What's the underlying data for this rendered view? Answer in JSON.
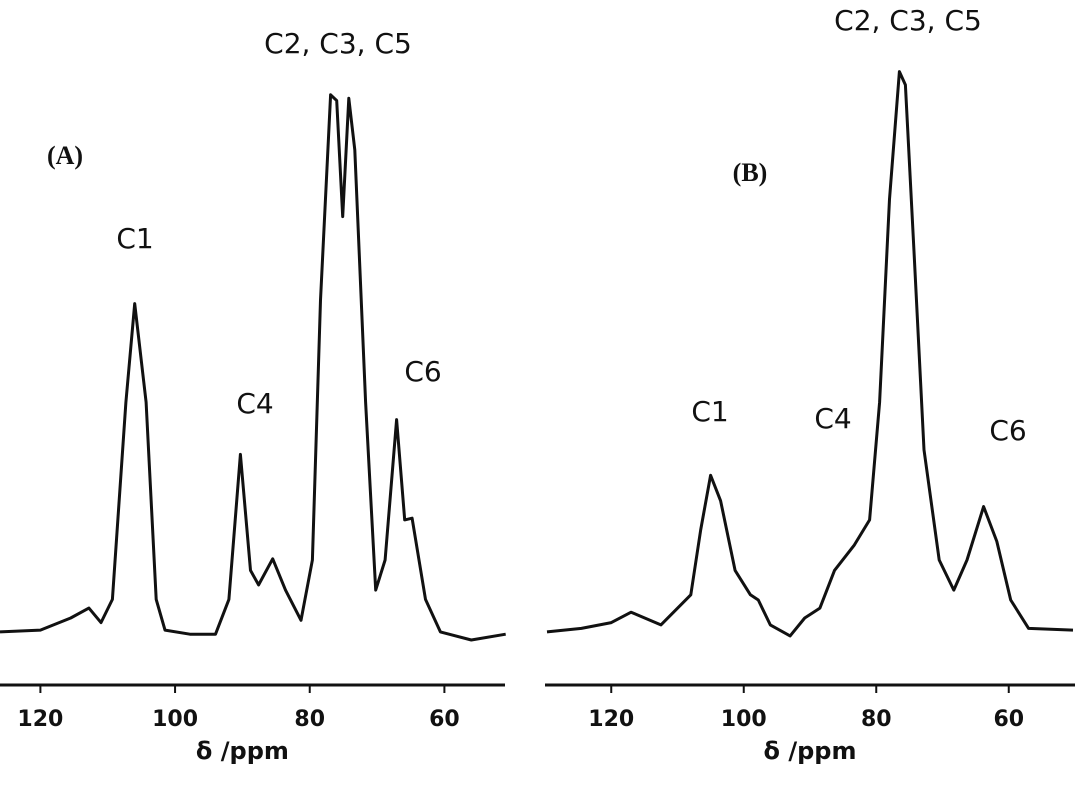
{
  "chart_data": [
    {
      "type": "line",
      "panel_label": "(A)",
      "xlabel": "δ /ppm",
      "annotations": [
        "C1",
        "C4",
        "C2, C3, C5",
        "C6"
      ],
      "xlim": [
        126,
        51
      ],
      "xticks": [
        120,
        100,
        80,
        60
      ],
      "ylim": [
        0,
        100
      ],
      "color": "#111111",
      "x": [
        126,
        120,
        115.5,
        112.8,
        111,
        109.3,
        107.3,
        106,
        104.3,
        102.8,
        101.5,
        97.8,
        94,
        92,
        90.3,
        88.8,
        87.6,
        85.5,
        83.6,
        81.3,
        79.6,
        78.4,
        76.9,
        76,
        75.1,
        74.2,
        73.3,
        71.7,
        70.2,
        68.8,
        67.1,
        65.9,
        64.8,
        62.8,
        60.6,
        56,
        50.9
      ],
      "values": [
        1.4,
        1.7,
        3.8,
        5.5,
        3,
        7,
        41,
        58,
        41,
        7,
        1.7,
        1,
        1,
        7,
        32,
        12,
        9.5,
        14,
        8.6,
        3.4,
        13.8,
        58.6,
        94,
        93,
        73,
        93.4,
        84.5,
        41,
        8.6,
        13.8,
        38,
        20.7,
        21,
        7,
        1.4,
        0,
        1
      ]
    },
    {
      "type": "line",
      "panel_label": "(B)",
      "xlabel": "δ /ppm",
      "annotations": [
        "C1",
        "C4",
        "C2, C3, C5",
        "C6"
      ],
      "xlim": [
        130,
        50
      ],
      "xticks": [
        120,
        100,
        80,
        60
      ],
      "ylim": [
        0,
        100
      ],
      "color": "#111111",
      "x": [
        129.7,
        124.5,
        120,
        117,
        112.5,
        108,
        106.5,
        105,
        103.5,
        101.3,
        99,
        97.8,
        96,
        93,
        90.8,
        88.5,
        86.3,
        83.3,
        81,
        79.5,
        78,
        76.5,
        75.6,
        74.3,
        72.8,
        70.5,
        68.3,
        66.3,
        63.8,
        61.8,
        59.7,
        57,
        50.3
      ],
      "values": [
        1.4,
        2,
        3,
        4.8,
        2.6,
        7.8,
        19,
        28.4,
        24,
        12,
        7.8,
        6.9,
        2.6,
        0.7,
        3.8,
        5.5,
        12,
        16.4,
        20.7,
        41,
        76,
        98,
        95.7,
        67,
        32.8,
        13.8,
        8.6,
        13.8,
        23,
        17,
        6.9,
        2,
        1.7
      ]
    }
  ]
}
